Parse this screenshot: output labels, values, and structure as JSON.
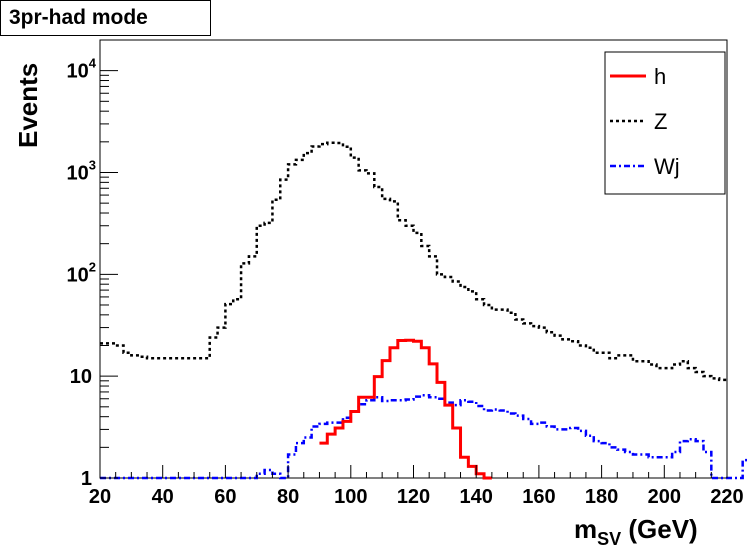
{
  "chart_data": {
    "type": "line",
    "title": "3pr-had mode",
    "xlabel": "m",
    "xlabel_sub": "SV",
    "xlabel_unit": "(GeV)",
    "ylabel": "Events",
    "xlim": [
      20,
      220
    ],
    "ylim": [
      1,
      20000
    ],
    "yscale": "log",
    "x_ticks": [
      20,
      40,
      60,
      80,
      100,
      120,
      140,
      160,
      180,
      200,
      220
    ],
    "x_tick_labels": [
      "20",
      "40",
      "60",
      "80",
      "100",
      "120",
      "140",
      "160",
      "180",
      "200",
      "220"
    ],
    "y_ticks": [
      {
        "value": 1,
        "base": "1",
        "exp": ""
      },
      {
        "value": 10,
        "base": "10",
        "exp": ""
      },
      {
        "value": 100,
        "base": "10",
        "exp": "2"
      },
      {
        "value": 1000,
        "base": "10",
        "exp": "3"
      },
      {
        "value": 10000,
        "base": "10",
        "exp": "4"
      }
    ],
    "legend_position": "top-right",
    "bin_width": 2.5,
    "series": [
      {
        "name": "h",
        "color": "#ff0000",
        "style": "solid",
        "x_start": 90,
        "values": [
          2.2,
          2.7,
          3.1,
          3.6,
          4.5,
          6.2,
          6.2,
          9.9,
          14.2,
          19.0,
          22.4,
          22.5,
          22.0,
          19.0,
          13.2,
          8.7,
          5.2,
          3.1,
          1.6,
          1.3,
          1.1,
          1.0
        ]
      },
      {
        "name": "Z",
        "color": "#000000",
        "style": "dotted",
        "x_start": 20,
        "values": [
          21,
          21,
          20,
          17,
          16,
          15.5,
          15,
          15,
          15,
          15,
          15,
          15,
          15,
          15,
          24,
          30,
          51,
          57,
          128,
          150,
          300,
          320,
          540,
          850,
          1200,
          1330,
          1550,
          1800,
          1900,
          1960,
          1950,
          1790,
          1400,
          1050,
          980,
          720,
          550,
          520,
          340,
          300,
          255,
          190,
          150,
          100,
          94,
          85,
          75,
          68,
          57,
          50,
          45,
          45,
          42,
          36,
          33,
          31,
          30,
          27,
          25,
          23,
          22,
          20,
          19,
          17,
          17,
          15,
          16,
          16,
          14,
          14,
          13,
          12,
          12,
          13,
          14,
          12,
          11,
          10,
          9.5,
          9.2
        ]
      },
      {
        "name": "Wj",
        "color": "#0000ff",
        "style": "dashdot",
        "x_start": 20,
        "values": [
          1.0,
          1.0,
          1.0,
          1.0,
          1.0,
          1.0,
          1.0,
          1.0,
          1.0,
          1.0,
          1.0,
          1.0,
          1.0,
          1.0,
          1.0,
          1.0,
          1.0,
          1.0,
          1.0,
          1.0,
          1.1,
          1.2,
          1.1,
          1.0,
          1.7,
          2.2,
          2.5,
          3.2,
          3.4,
          3.5,
          3.5,
          3.9,
          4.5,
          5.3,
          5.8,
          6.2,
          5.7,
          5.8,
          5.8,
          5.9,
          6.3,
          6.5,
          6.2,
          6.0,
          5.5,
          5.2,
          5.8,
          5.6,
          5.1,
          4.6,
          4.7,
          4.6,
          4.3,
          4.1,
          3.8,
          3.4,
          3.5,
          3.2,
          3.0,
          3.0,
          3.1,
          2.9,
          2.6,
          2.3,
          2.2,
          2.0,
          1.9,
          1.8,
          1.7,
          1.7,
          1.6,
          1.6,
          1.6,
          1.8,
          2.3,
          2.4,
          2.3,
          1.8,
          1.0,
          1.0,
          1.0,
          1.0,
          1.5,
          1.8,
          1.7,
          1.6,
          1.5
        ]
      }
    ]
  }
}
